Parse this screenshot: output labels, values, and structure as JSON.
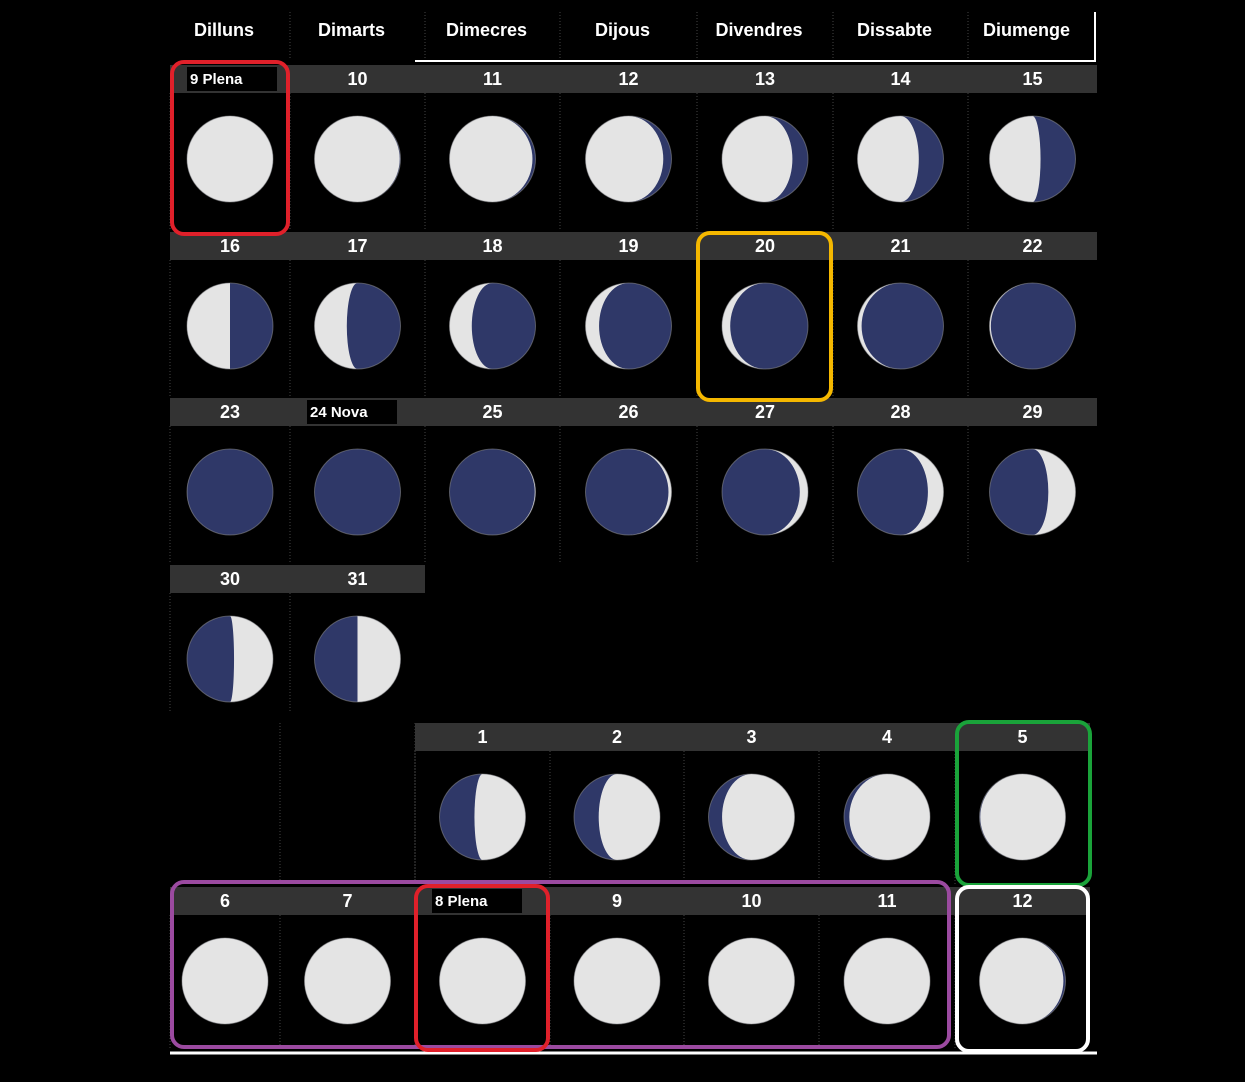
{
  "weekdays": [
    "Dilluns",
    "Dimarts",
    "Dimecres",
    "Dijous",
    "Divendres",
    "Dissabte",
    "Diumenge"
  ],
  "month_one": {
    "days": [
      "9 Plena",
      "10",
      "11",
      "12",
      "13",
      "14",
      "15",
      "16",
      "17",
      "18",
      "19",
      "20",
      "21",
      "22",
      "23",
      "24 Nova",
      "25",
      "26",
      "27",
      "28",
      "29",
      "30",
      "31"
    ]
  },
  "month_two": {
    "days": [
      "1",
      "2",
      "3",
      "4",
      "5",
      "6",
      "7",
      "8 Plena",
      "9",
      "10",
      "11",
      "12"
    ]
  }
}
